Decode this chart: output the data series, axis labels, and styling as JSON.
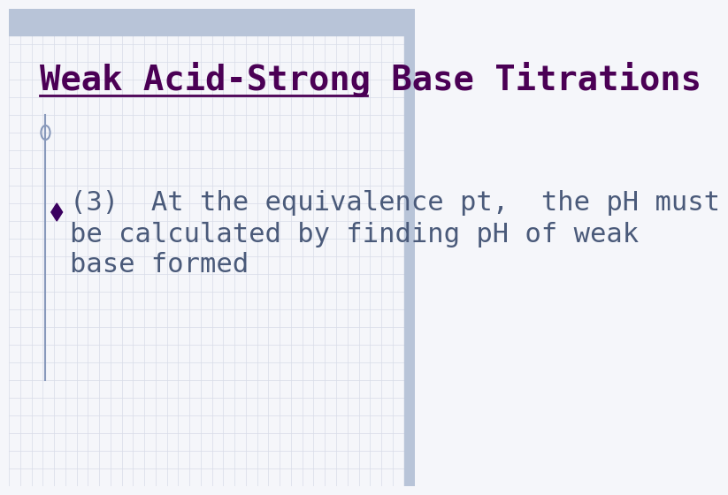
{
  "title": "Weak Acid-Strong Base Titrations",
  "title_color": "#4B0055",
  "title_fontsize": 28,
  "title_underline": true,
  "body_text_line1": "(3)  At the equivalence pt,  the pH must",
  "body_text_line2": "be calculated by finding pH of weak",
  "body_text_line3": "base formed",
  "body_color": "#4A5A7A",
  "body_fontsize": 22,
  "bullet_color": "#3B0060",
  "bg_color": "#F5F6FA",
  "grid_color": "#D8DCE8",
  "top_banner_color": "#B8C4D8",
  "right_banner_color": "#B8C4D8",
  "left_line_color": "#8899BB",
  "left_circle_color": "#8899BB"
}
